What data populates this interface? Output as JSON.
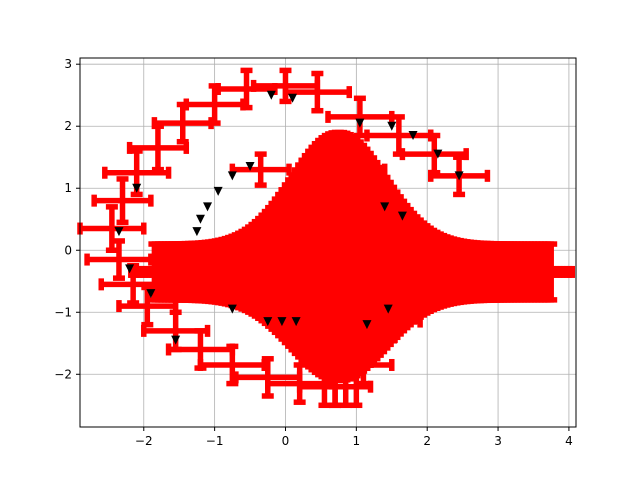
{
  "chart_data": {
    "type": "scatter",
    "title": "",
    "xlabel": "",
    "ylabel": "",
    "xlim": [
      -2.9,
      4.1
    ],
    "ylim": [
      -2.85,
      3.1
    ],
    "xticks": [
      -2,
      -1,
      0,
      1,
      2,
      3,
      4
    ],
    "yticks": [
      -2,
      -1,
      0,
      1,
      2,
      3
    ],
    "xtick_labels": [
      "−2",
      "−1",
      "0",
      "1",
      "2",
      "3",
      "4"
    ],
    "ytick_labels": [
      "−2",
      "−1",
      "0",
      "1",
      "2",
      "3"
    ],
    "grid": true,
    "legend": "none",
    "marker": "triangle-down",
    "marker_color": "#000000",
    "errorbar_color": "#ff0000",
    "series": [
      {
        "kind": "outer-ring-errorbars",
        "points": [
          {
            "x": -0.55,
            "y": 2.6,
            "xerr": 0.4,
            "yerr": 0.3
          },
          {
            "x": 0.0,
            "y": 2.65,
            "xerr": 0.45,
            "yerr": 0.25
          },
          {
            "x": 0.45,
            "y": 2.55,
            "xerr": 0.45,
            "yerr": 0.3
          },
          {
            "x": -1.0,
            "y": 2.35,
            "xerr": 0.4,
            "yerr": 0.3
          },
          {
            "x": -1.45,
            "y": 2.05,
            "xerr": 0.4,
            "yerr": 0.3
          },
          {
            "x": -1.8,
            "y": 1.65,
            "xerr": 0.4,
            "yerr": 0.35
          },
          {
            "x": -2.1,
            "y": 1.25,
            "xerr": 0.45,
            "yerr": 0.35
          },
          {
            "x": -2.3,
            "y": 0.8,
            "xerr": 0.4,
            "yerr": 0.35
          },
          {
            "x": -2.45,
            "y": 0.35,
            "xerr": 0.45,
            "yerr": 0.35
          },
          {
            "x": -2.35,
            "y": -0.15,
            "xerr": 0.45,
            "yerr": 0.3
          },
          {
            "x": -2.15,
            "y": -0.55,
            "xerr": 0.45,
            "yerr": 0.3
          },
          {
            "x": -1.95,
            "y": -0.9,
            "xerr": 0.4,
            "yerr": 0.3
          },
          {
            "x": -1.55,
            "y": -1.3,
            "xerr": 0.45,
            "yerr": 0.3
          },
          {
            "x": -1.2,
            "y": -1.6,
            "xerr": 0.45,
            "yerr": 0.3
          },
          {
            "x": -0.75,
            "y": -1.85,
            "xerr": 0.45,
            "yerr": 0.3
          },
          {
            "x": -0.25,
            "y": -2.05,
            "xerr": 0.45,
            "yerr": 0.3
          },
          {
            "x": 0.2,
            "y": -2.15,
            "xerr": 0.45,
            "yerr": 0.3
          },
          {
            "x": 0.7,
            "y": -2.2,
            "xerr": 0.5,
            "yerr": 0.3
          },
          {
            "x": 1.1,
            "y": -1.85,
            "xerr": 0.4,
            "yerr": 0.3
          },
          {
            "x": 1.5,
            "y": -1.15,
            "xerr": 0.4,
            "yerr": 0.3
          },
          {
            "x": 1.05,
            "y": 2.15,
            "xerr": 0.45,
            "yerr": 0.3
          },
          {
            "x": 1.6,
            "y": 1.85,
            "xerr": 0.45,
            "yerr": 0.3
          },
          {
            "x": 2.1,
            "y": 1.55,
            "xerr": 0.45,
            "yerr": 0.3
          },
          {
            "x": 2.45,
            "y": 1.2,
            "xerr": 0.4,
            "yerr": 0.3
          },
          {
            "x": 0.9,
            "y": 1.3,
            "xerr": 0.5,
            "yerr": 0.3
          },
          {
            "x": -0.35,
            "y": 1.3,
            "xerr": 0.4,
            "yerr": 0.25
          }
        ]
      },
      {
        "kind": "ring-markers",
        "points": [
          {
            "x": -1.25,
            "y": 0.3
          },
          {
            "x": -1.2,
            "y": 0.5
          },
          {
            "x": -1.1,
            "y": 0.7
          },
          {
            "x": -0.95,
            "y": 0.95
          },
          {
            "x": -0.75,
            "y": 1.2
          },
          {
            "x": -0.5,
            "y": 1.35
          },
          {
            "x": 1.4,
            "y": 0.7
          },
          {
            "x": 1.65,
            "y": 0.55
          },
          {
            "x": 2.15,
            "y": 1.55
          },
          {
            "x": 2.45,
            "y": 1.2
          },
          {
            "x": 1.8,
            "y": 1.85
          },
          {
            "x": 1.5,
            "y": 2.0
          },
          {
            "x": -0.25,
            "y": -1.15
          },
          {
            "x": -0.05,
            "y": -1.15
          },
          {
            "x": 0.15,
            "y": -1.15
          },
          {
            "x": 1.15,
            "y": -1.2
          },
          {
            "x": 1.45,
            "y": -0.95
          },
          {
            "x": -0.75,
            "y": -0.95
          },
          {
            "x": -1.55,
            "y": -1.45
          },
          {
            "x": -1.9,
            "y": -0.7
          },
          {
            "x": -2.2,
            "y": -0.3
          },
          {
            "x": -2.35,
            "y": 0.3
          },
          {
            "x": -2.1,
            "y": 1.0
          },
          {
            "x": -0.2,
            "y": 2.5
          },
          {
            "x": 0.1,
            "y": 2.45
          },
          {
            "x": 1.05,
            "y": 2.05
          }
        ]
      },
      {
        "kind": "dense-central-errorbars",
        "x_start": -1.85,
        "x_end": 3.75,
        "count": 120,
        "peak_x": 0.75,
        "peak_xerr": 1.0,
        "peak_yerr": 2.0,
        "tail_xerr": 0.25,
        "tail_yerr": 0.45,
        "center_y": -0.35
      }
    ]
  }
}
